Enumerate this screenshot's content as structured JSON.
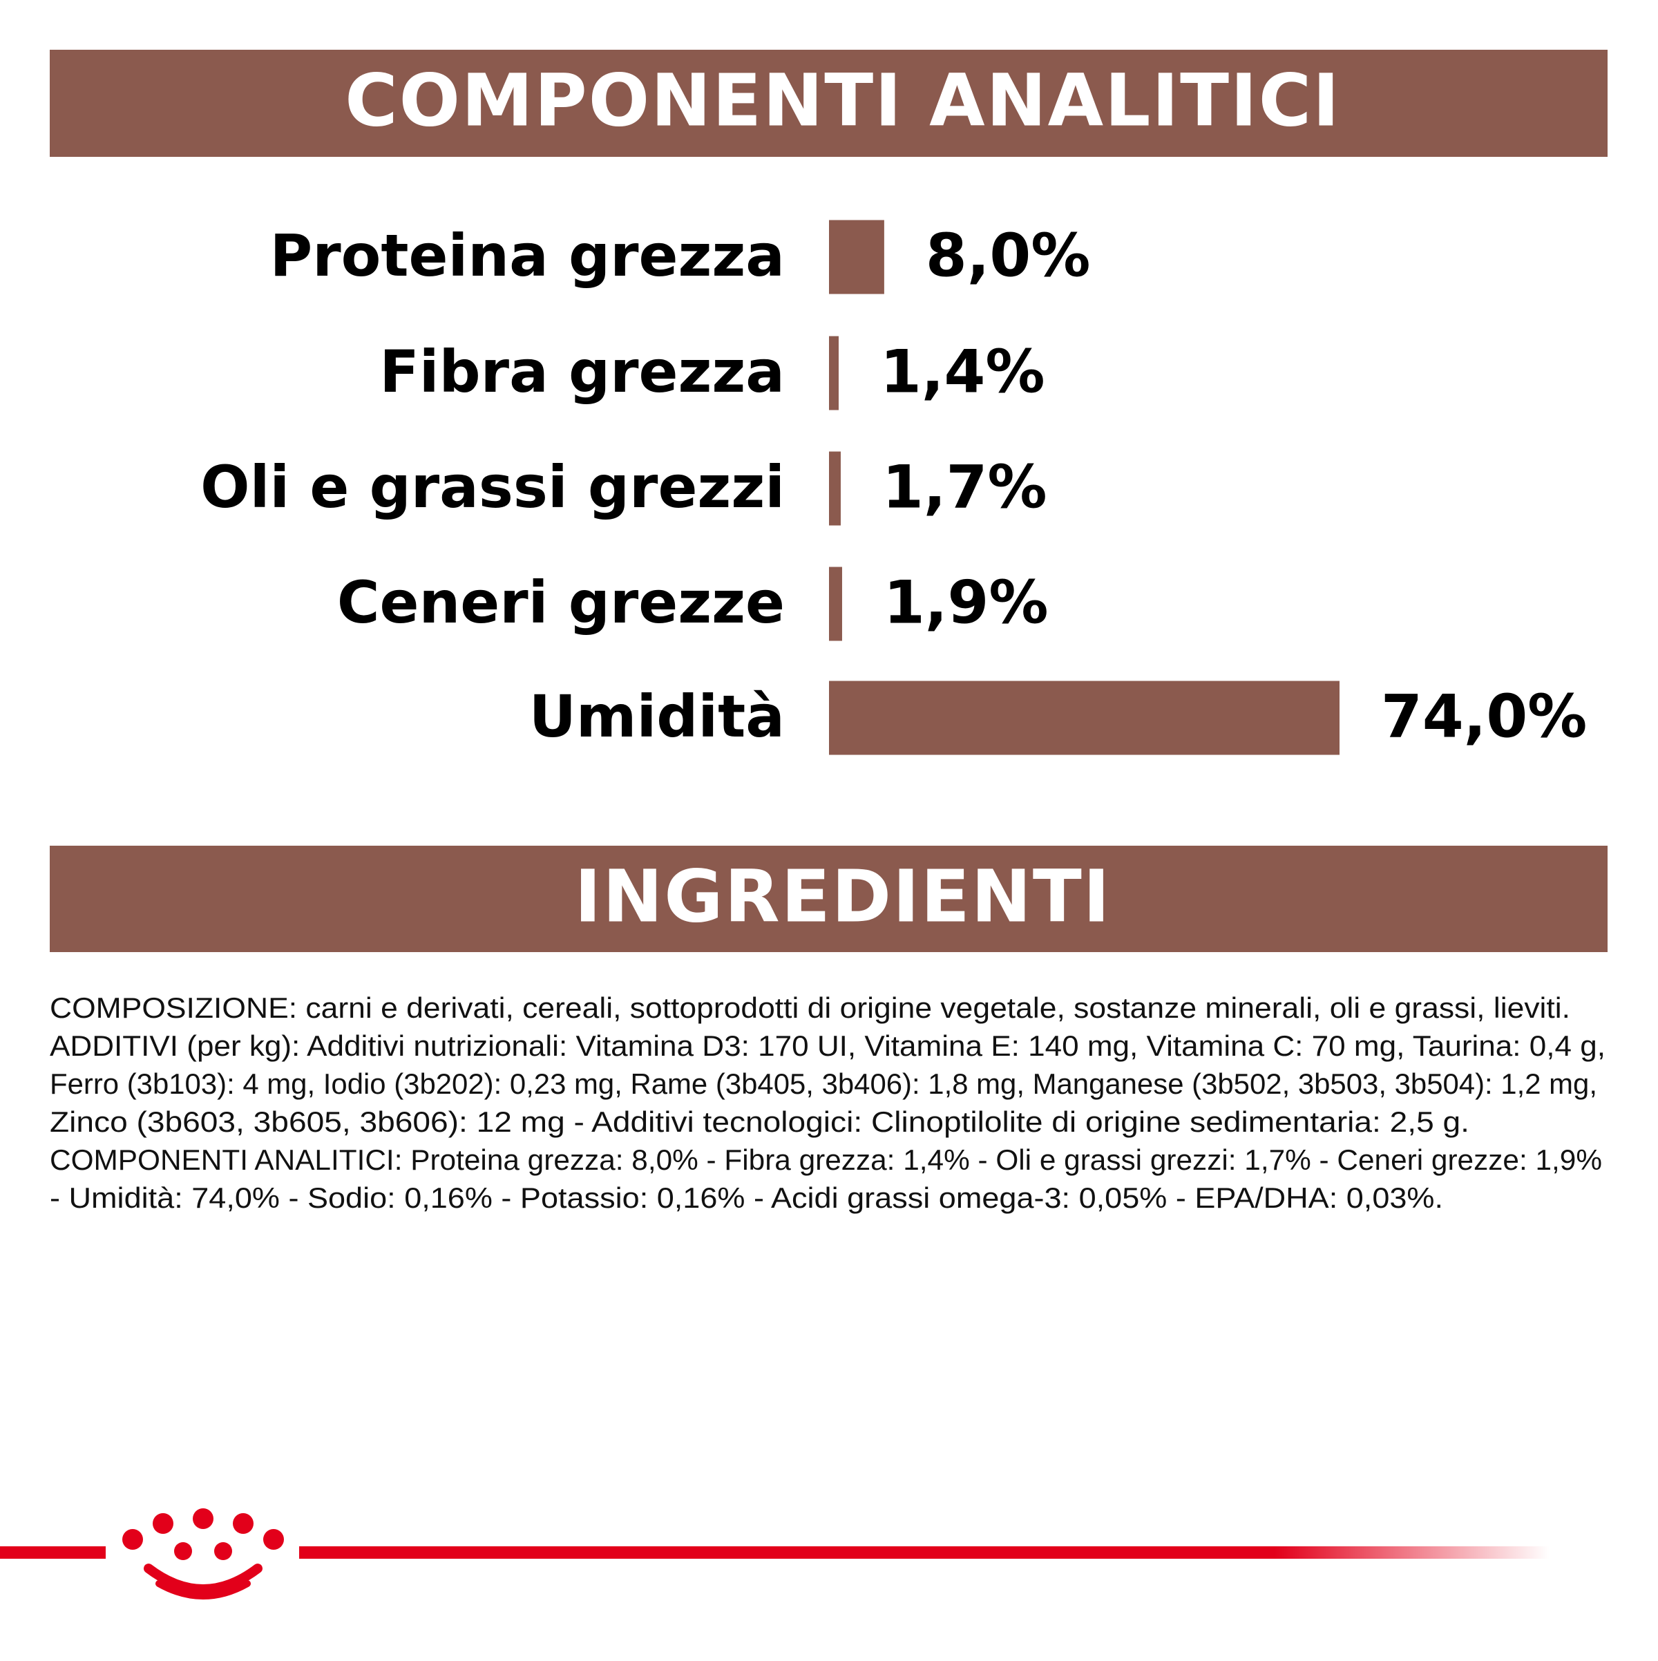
{
  "chart_data": {
    "type": "bar",
    "orientation": "horizontal",
    "title": "COMPONENTI ANALITICI",
    "categories": [
      "Proteina grezza",
      "Fibra grezza",
      "Oli e grassi grezzi",
      "Ceneri grezze",
      "Umidità"
    ],
    "values": [
      8.0,
      1.4,
      1.7,
      1.9,
      74.0
    ],
    "value_labels": [
      "8,0%",
      "1,4%",
      "1,7%",
      "1,9%",
      "74,0%"
    ],
    "color": "#8b5a4e"
  },
  "ingredients": {
    "title": "INGREDIENTI",
    "lines": [
      "COMPOSIZIONE: carni e derivati, cereali, sottoprodotti di origine vegetale, sostanze minerali, oli e grassi, lieviti.",
      "ADDITIVI (per kg): Additivi nutrizionali: Vitamina D3: 170 UI, Vitamina E: 140 mg, Vitamina C: 70 mg, Taurina: 0,4 g,",
      "Ferro (3b103): 4 mg, Iodio (3b202): 0,23 mg, Rame (3b405, 3b406): 1,8 mg, Manganese (3b502, 3b503, 3b504): 1,2 mg,",
      "Zinco (3b603, 3b605, 3b606): 12 mg - Additivi tecnologici: Clinoptilolite di origine sedimentaria: 2,5 g.",
      "COMPONENTI ANALITICI: Proteina grezza: 8,0% - Fibra grezza: 1,4% - Oli e grassi grezzi: 1,7% - Ceneri grezze: 1,9%",
      "- Umidità: 74,0% - Sodio: 0,16% - Potassio: 0,16% - Acidi grassi omega-3: 0,05% - EPA/DHA: 0,03%."
    ]
  }
}
